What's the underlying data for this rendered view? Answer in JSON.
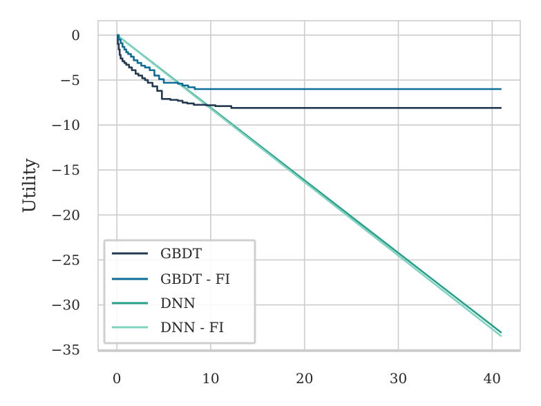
{
  "chart_data": {
    "type": "line",
    "title": "",
    "xlabel": "",
    "ylabel": "Utility",
    "xlim": [
      -2,
      43
    ],
    "ylim": [
      -35.1,
      1.6
    ],
    "xticks": [
      0,
      10,
      20,
      30,
      40
    ],
    "yticks": [
      0,
      -5,
      -10,
      -15,
      -20,
      -25,
      -30,
      -35
    ],
    "xtick_labels": [
      "0",
      "10",
      "20",
      "30",
      "40"
    ],
    "ytick_labels": [
      "0",
      "−5",
      "−10",
      "−15",
      "−20",
      "−25",
      "−30",
      "−35"
    ],
    "grid": true,
    "legend_position": "lower-left",
    "series": [
      {
        "name": "GBDT",
        "color": "#22394f",
        "step": true,
        "x": [
          0,
          0.1,
          0.2,
          0.3,
          0.4,
          0.6,
          0.8,
          1.0,
          1.3,
          1.6,
          2.0,
          2.3,
          2.7,
          3.0,
          3.3,
          3.8,
          4.3,
          4.8,
          5.7,
          6.5,
          7.0,
          7.5,
          8.2,
          9.5,
          10.5,
          12.2,
          41
        ],
        "y": [
          0,
          -1.0,
          -1.6,
          -2.2,
          -2.6,
          -2.9,
          -3.1,
          -3.3,
          -3.6,
          -3.9,
          -4.3,
          -4.5,
          -4.8,
          -5.0,
          -5.3,
          -5.7,
          -6.2,
          -7.1,
          -7.2,
          -7.3,
          -7.5,
          -7.6,
          -7.75,
          -7.8,
          -7.9,
          -8.1,
          -8.1
        ]
      },
      {
        "name": "GBDT - FI",
        "color": "#0c6e98",
        "step": true,
        "x": [
          0,
          0.2,
          0.4,
          0.6,
          0.8,
          1.0,
          1.2,
          1.5,
          1.8,
          2.2,
          2.6,
          3.0,
          3.5,
          4.0,
          4.5,
          5.0,
          6.5,
          7.0,
          7.6,
          8.3,
          41
        ],
        "y": [
          0,
          -0.5,
          -0.9,
          -1.3,
          -1.6,
          -1.9,
          -2.1,
          -2.4,
          -2.8,
          -3.1,
          -3.4,
          -3.6,
          -3.9,
          -4.5,
          -4.9,
          -5.3,
          -5.4,
          -5.6,
          -5.8,
          -6.0,
          -6.0
        ]
      },
      {
        "name": "DNN",
        "color": "#27a08a",
        "step": false,
        "x": [
          0,
          41
        ],
        "y": [
          0,
          -33.1
        ]
      },
      {
        "name": "DNN - FI",
        "color": "#7fd3bf",
        "step": false,
        "x": [
          0,
          41
        ],
        "y": [
          0,
          -33.5
        ]
      }
    ]
  }
}
